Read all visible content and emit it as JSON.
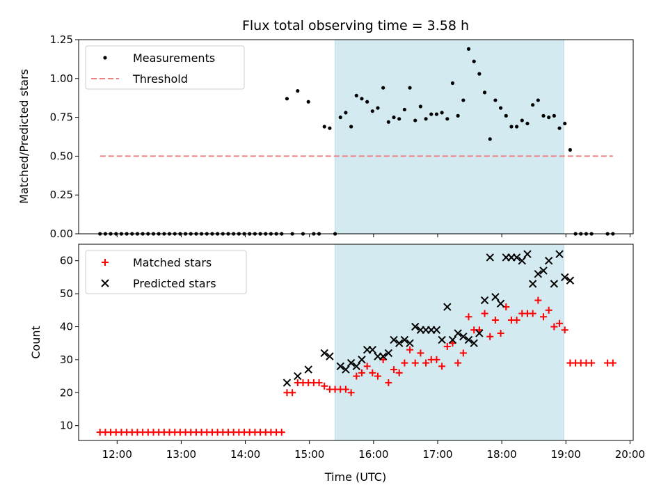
{
  "chart_data": [
    {
      "type": "scatter",
      "title": "Flux total observing time = 3.58 h",
      "xlabel": "",
      "ylabel": "Matched/Predicted stars",
      "ylim": [
        0,
        1.25
      ],
      "yticks": [
        "0.00",
        "0.25",
        "0.50",
        "0.75",
        "1.00",
        "1.25"
      ],
      "xlim": [
        "11:24",
        "20:03"
      ],
      "shaded_interval": [
        "15:24",
        "18:58"
      ],
      "shade_color": "#d3eaf1",
      "legend_position": "upper-left",
      "series": [
        {
          "name": "Measurements",
          "marker": "dot",
          "color": "#000000",
          "points": [
            [
              "11:44",
              0
            ],
            [
              "11:49",
              0
            ],
            [
              "11:54",
              0
            ],
            [
              "11:59",
              0
            ],
            [
              "12:04",
              0
            ],
            [
              "12:09",
              0
            ],
            [
              "12:14",
              0
            ],
            [
              "12:19",
              0
            ],
            [
              "12:24",
              0
            ],
            [
              "12:29",
              0
            ],
            [
              "12:34",
              0
            ],
            [
              "12:39",
              0
            ],
            [
              "12:44",
              0
            ],
            [
              "12:49",
              0
            ],
            [
              "12:54",
              0
            ],
            [
              "12:59",
              0
            ],
            [
              "13:04",
              0
            ],
            [
              "13:09",
              0
            ],
            [
              "13:14",
              0
            ],
            [
              "13:19",
              0
            ],
            [
              "13:24",
              0
            ],
            [
              "13:29",
              0
            ],
            [
              "13:34",
              0
            ],
            [
              "13:39",
              0
            ],
            [
              "13:44",
              0
            ],
            [
              "13:49",
              0
            ],
            [
              "13:54",
              0
            ],
            [
              "13:59",
              0
            ],
            [
              "14:04",
              0
            ],
            [
              "14:09",
              0
            ],
            [
              "14:14",
              0
            ],
            [
              "14:19",
              0
            ],
            [
              "14:24",
              0
            ],
            [
              "14:29",
              0
            ],
            [
              "14:34",
              0
            ],
            [
              "14:39",
              0.87
            ],
            [
              "14:44",
              0
            ],
            [
              "14:49",
              0.92
            ],
            [
              "14:54",
              0
            ],
            [
              "14:59",
              0.85
            ],
            [
              "15:04",
              0
            ],
            [
              "15:09",
              0
            ],
            [
              "15:14",
              0.69
            ],
            [
              "15:19",
              0.68
            ],
            [
              "15:24",
              0
            ],
            [
              "15:29",
              0.75
            ],
            [
              "15:34",
              0.78
            ],
            [
              "15:39",
              0.69
            ],
            [
              "15:44",
              0.89
            ],
            [
              "15:49",
              0.87
            ],
            [
              "15:54",
              0.85
            ],
            [
              "15:59",
              0.79
            ],
            [
              "16:04",
              0.81
            ],
            [
              "16:09",
              0.94
            ],
            [
              "16:14",
              0.72
            ],
            [
              "16:19",
              0.75
            ],
            [
              "16:24",
              0.74
            ],
            [
              "16:29",
              0.8
            ],
            [
              "16:34",
              0.94
            ],
            [
              "16:39",
              0.73
            ],
            [
              "16:44",
              0.82
            ],
            [
              "16:49",
              0.74
            ],
            [
              "16:54",
              0.77
            ],
            [
              "16:59",
              0.77
            ],
            [
              "17:04",
              0.78
            ],
            [
              "17:09",
              0.74
            ],
            [
              "17:14",
              0.97
            ],
            [
              "17:19",
              0.76
            ],
            [
              "17:24",
              0.86
            ],
            [
              "17:29",
              1.19
            ],
            [
              "17:34",
              1.11
            ],
            [
              "17:39",
              1.03
            ],
            [
              "17:44",
              0.91
            ],
            [
              "17:49",
              0.61
            ],
            [
              "17:54",
              0.86
            ],
            [
              "17:59",
              0.81
            ],
            [
              "18:04",
              0.76
            ],
            [
              "18:09",
              0.69
            ],
            [
              "18:14",
              0.69
            ],
            [
              "18:19",
              0.73
            ],
            [
              "18:24",
              0.71
            ],
            [
              "18:29",
              0.83
            ],
            [
              "18:34",
              0.86
            ],
            [
              "18:39",
              0.76
            ],
            [
              "18:44",
              0.75
            ],
            [
              "18:49",
              0.76
            ],
            [
              "18:54",
              0.68
            ],
            [
              "18:59",
              0.71
            ],
            [
              "19:04",
              0.54
            ],
            [
              "19:09",
              0
            ],
            [
              "19:14",
              0
            ],
            [
              "19:19",
              0
            ],
            [
              "19:24",
              0
            ],
            [
              "19:39",
              0
            ],
            [
              "19:44",
              0
            ]
          ]
        },
        {
          "name": "Threshold",
          "marker": "dashed-line",
          "color": "#f08080",
          "points": [
            [
              "11:44",
              0.5
            ],
            [
              "19:44",
              0.5
            ]
          ]
        }
      ]
    },
    {
      "type": "scatter",
      "title": "",
      "xlabel": "Time (UTC)",
      "ylabel": "Count",
      "ylim": [
        5.5,
        65
      ],
      "yticks": [
        "10",
        "20",
        "30",
        "40",
        "50",
        "60"
      ],
      "xlim": [
        "11:24",
        "20:03"
      ],
      "xticks": [
        "12:00",
        "13:00",
        "14:00",
        "15:00",
        "16:00",
        "17:00",
        "18:00",
        "19:00",
        "20:00"
      ],
      "shaded_interval": [
        "15:24",
        "18:58"
      ],
      "shade_color": "#d3eaf1",
      "legend_position": "upper-left",
      "series": [
        {
          "name": "Matched stars",
          "marker": "plus",
          "color": "#ff0000",
          "points": [
            [
              "11:44",
              8
            ],
            [
              "11:49",
              8
            ],
            [
              "11:54",
              8
            ],
            [
              "11:59",
              8
            ],
            [
              "12:04",
              8
            ],
            [
              "12:09",
              8
            ],
            [
              "12:14",
              8
            ],
            [
              "12:19",
              8
            ],
            [
              "12:24",
              8
            ],
            [
              "12:29",
              8
            ],
            [
              "12:34",
              8
            ],
            [
              "12:39",
              8
            ],
            [
              "12:44",
              8
            ],
            [
              "12:49",
              8
            ],
            [
              "12:54",
              8
            ],
            [
              "12:59",
              8
            ],
            [
              "13:04",
              8
            ],
            [
              "13:09",
              8
            ],
            [
              "13:14",
              8
            ],
            [
              "13:19",
              8
            ],
            [
              "13:24",
              8
            ],
            [
              "13:29",
              8
            ],
            [
              "13:34",
              8
            ],
            [
              "13:39",
              8
            ],
            [
              "13:44",
              8
            ],
            [
              "13:49",
              8
            ],
            [
              "13:54",
              8
            ],
            [
              "13:59",
              8
            ],
            [
              "14:04",
              8
            ],
            [
              "14:09",
              8
            ],
            [
              "14:14",
              8
            ],
            [
              "14:19",
              8
            ],
            [
              "14:24",
              8
            ],
            [
              "14:29",
              8
            ],
            [
              "14:34",
              8
            ],
            [
              "14:39",
              20
            ],
            [
              "14:44",
              20
            ],
            [
              "14:49",
              23
            ],
            [
              "14:54",
              23
            ],
            [
              "14:59",
              23
            ],
            [
              "15:04",
              23
            ],
            [
              "15:09",
              23
            ],
            [
              "15:14",
              22
            ],
            [
              "15:19",
              21
            ],
            [
              "15:24",
              21
            ],
            [
              "15:29",
              21
            ],
            [
              "15:34",
              21
            ],
            [
              "15:39",
              20
            ],
            [
              "15:44",
              25
            ],
            [
              "15:49",
              26
            ],
            [
              "15:54",
              28
            ],
            [
              "15:59",
              26
            ],
            [
              "16:04",
              25
            ],
            [
              "16:09",
              30
            ],
            [
              "16:14",
              23
            ],
            [
              "16:19",
              27
            ],
            [
              "16:24",
              26
            ],
            [
              "16:29",
              29
            ],
            [
              "16:34",
              33
            ],
            [
              "16:39",
              29
            ],
            [
              "16:44",
              32
            ],
            [
              "16:49",
              29
            ],
            [
              "16:54",
              30
            ],
            [
              "16:59",
              30
            ],
            [
              "17:04",
              28
            ],
            [
              "17:09",
              34
            ],
            [
              "17:14",
              35
            ],
            [
              "17:19",
              29
            ],
            [
              "17:24",
              32
            ],
            [
              "17:29",
              43
            ],
            [
              "17:34",
              39
            ],
            [
              "17:39",
              39
            ],
            [
              "17:44",
              44
            ],
            [
              "17:49",
              37
            ],
            [
              "17:54",
              42
            ],
            [
              "17:59",
              38
            ],
            [
              "18:04",
              46
            ],
            [
              "18:09",
              42
            ],
            [
              "18:14",
              42
            ],
            [
              "18:19",
              44
            ],
            [
              "18:24",
              44
            ],
            [
              "18:29",
              44
            ],
            [
              "18:34",
              48
            ],
            [
              "18:39",
              43
            ],
            [
              "18:44",
              45
            ],
            [
              "18:49",
              40
            ],
            [
              "18:54",
              41
            ],
            [
              "18:59",
              39
            ],
            [
              "19:04",
              29
            ],
            [
              "19:09",
              29
            ],
            [
              "19:14",
              29
            ],
            [
              "19:19",
              29
            ],
            [
              "19:24",
              29
            ],
            [
              "19:39",
              29
            ],
            [
              "19:44",
              29
            ]
          ]
        },
        {
          "name": "Predicted stars",
          "marker": "x",
          "color": "#000000",
          "points": [
            [
              "14:39",
              23
            ],
            [
              "14:49",
              25
            ],
            [
              "14:59",
              27
            ],
            [
              "15:14",
              32
            ],
            [
              "15:19",
              31
            ],
            [
              "15:29",
              28
            ],
            [
              "15:34",
              27
            ],
            [
              "15:39",
              29
            ],
            [
              "15:44",
              28
            ],
            [
              "15:49",
              30
            ],
            [
              "15:54",
              33
            ],
            [
              "15:59",
              33
            ],
            [
              "16:04",
              31
            ],
            [
              "16:09",
              31
            ],
            [
              "16:14",
              32
            ],
            [
              "16:19",
              36
            ],
            [
              "16:24",
              35
            ],
            [
              "16:29",
              36
            ],
            [
              "16:34",
              35
            ],
            [
              "16:39",
              40
            ],
            [
              "16:44",
              39
            ],
            [
              "16:49",
              39
            ],
            [
              "16:54",
              39
            ],
            [
              "16:59",
              39
            ],
            [
              "17:04",
              36
            ],
            [
              "17:09",
              46
            ],
            [
              "17:14",
              36
            ],
            [
              "17:19",
              38
            ],
            [
              "17:24",
              37
            ],
            [
              "17:29",
              36
            ],
            [
              "17:34",
              35
            ],
            [
              "17:39",
              38
            ],
            [
              "17:44",
              48
            ],
            [
              "17:49",
              61
            ],
            [
              "17:54",
              49
            ],
            [
              "17:59",
              47
            ],
            [
              "18:04",
              61
            ],
            [
              "18:09",
              61
            ],
            [
              "18:14",
              61
            ],
            [
              "18:19",
              60
            ],
            [
              "18:24",
              62
            ],
            [
              "18:29",
              53
            ],
            [
              "18:34",
              56
            ],
            [
              "18:39",
              57
            ],
            [
              "18:44",
              60
            ],
            [
              "18:49",
              53
            ],
            [
              "18:54",
              62
            ],
            [
              "18:59",
              55
            ],
            [
              "19:04",
              54
            ]
          ]
        }
      ]
    }
  ]
}
